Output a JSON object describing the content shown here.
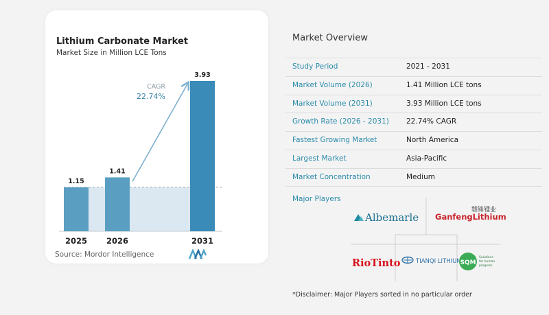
{
  "chart": {
    "title": "Lithium Carbonate Market",
    "subtitle": "Market Size in Million LCE Tons",
    "cagr_label": "CAGR",
    "cagr_value": "22.74%",
    "source": "Source: Mordor Intelligence"
  },
  "chart_data": {
    "type": "bar",
    "categories": [
      "2025",
      "2026",
      "2031"
    ],
    "values": [
      1.15,
      1.41,
      3.93
    ],
    "data_labels": [
      "1.15",
      "1.41",
      "3.93"
    ],
    "title": "Lithium Carbonate Market",
    "subtitle": "Market Size in Million LCE Tons",
    "xlabel": "",
    "ylabel": "",
    "annotations": [
      {
        "text": "CAGR 22.74%",
        "from": "2026",
        "to": "2031"
      }
    ],
    "colors": {
      "bar": "#5a9ec2",
      "bar_highlight": "#3a8bb8",
      "band": "#dce8f1",
      "arrow": "#7fb0cf"
    }
  },
  "overview": {
    "title": "Market Overview",
    "rows": [
      {
        "label": "Study Period",
        "value": "2021 - 2031"
      },
      {
        "label": "Market Volume (2026)",
        "value": "1.41 Million LCE tons"
      },
      {
        "label": "Market Volume (2031)",
        "value": "3.93 Million LCE tons"
      },
      {
        "label": "Growth Rate (2026 - 2031)",
        "value": "22.74% CAGR"
      },
      {
        "label": "Fastest Growing Market",
        "value": "North America"
      },
      {
        "label": "Largest Market",
        "value": "Asia-Pacific"
      },
      {
        "label": "Market Concentration",
        "value": "Medium"
      }
    ],
    "players_title": "Major Players",
    "players": [
      {
        "name": "Albemarle",
        "logo": "Albemarle"
      },
      {
        "name": "Ganfeng Lithium",
        "logo": "GanfengLithium",
        "logo_cn": "赣锋锂业"
      },
      {
        "name": "Rio Tinto",
        "logo": "RioTinto"
      },
      {
        "name": "Tianqi Lithium",
        "logo": "TIANQI LITHIUM"
      },
      {
        "name": "SQM",
        "logo": "SQM",
        "tagline": "Solutions for human progress"
      }
    ],
    "disclaimer": "*Disclaimer: Major Players sorted in no particular order"
  },
  "colors": {
    "accent": "#2a8bab",
    "label": "#2a8bab"
  }
}
